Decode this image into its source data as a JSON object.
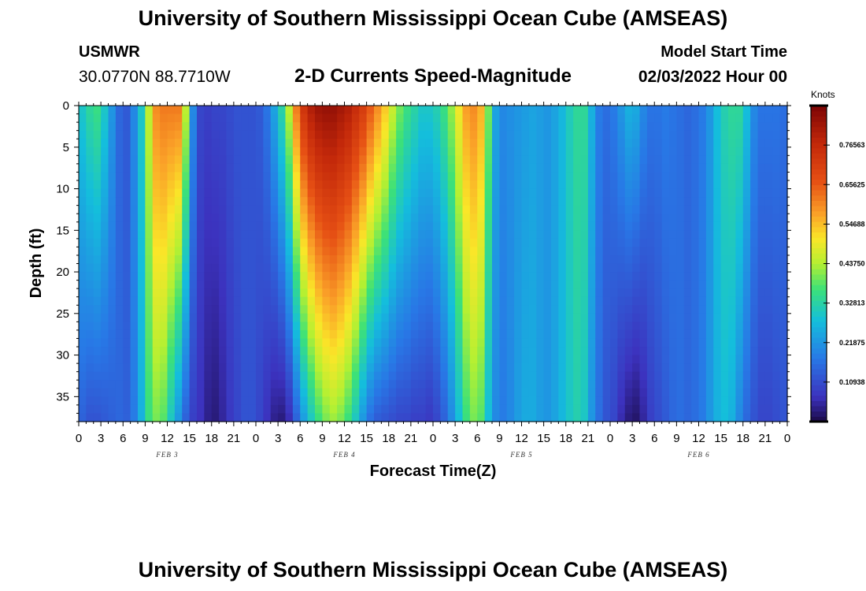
{
  "header": {
    "title": "University of Southern Mississippi Ocean Cube (AMSEAS)",
    "station": "USMWR",
    "coordinates": "30.0770N  88.7710W",
    "chart_subtitle": "2-D Currents Speed-Magnitude",
    "start_label": "Model Start Time",
    "start_value": "02/03/2022 Hour 00"
  },
  "footer": {
    "title": "University of Southern Mississippi Ocean Cube (AMSEAS)"
  },
  "chart_data": {
    "type": "heatmap",
    "title": "2-D Currents Speed-Magnitude",
    "xlabel": "Forecast Time(Z)",
    "ylabel": "Depth (ft)",
    "x_range_hours": [
      0,
      96
    ],
    "x_tick_labels": [
      "0",
      "3",
      "6",
      "9",
      "12",
      "15",
      "18",
      "21",
      "0",
      "3",
      "6",
      "9",
      "12",
      "15",
      "18",
      "21",
      "0",
      "3",
      "6",
      "9",
      "12",
      "15",
      "18",
      "21",
      "0",
      "3",
      "6",
      "9",
      "12",
      "15",
      "18",
      "21",
      "0"
    ],
    "date_labels": [
      {
        "label": "FEB 3",
        "hour": 12
      },
      {
        "label": "FEB 4",
        "hour": 36
      },
      {
        "label": "FEB 5",
        "hour": 60
      },
      {
        "label": "FEB 6",
        "hour": 84
      }
    ],
    "y_range_ft": [
      0,
      38
    ],
    "y_ticks": [
      0,
      5,
      10,
      15,
      20,
      25,
      30,
      35
    ],
    "y_inverted": true,
    "colorbar": {
      "title": "Knots",
      "ticks": [
        "0.76563",
        "0.65625",
        "0.54688",
        "0.43750",
        "0.32813",
        "0.21875",
        "0.10938"
      ],
      "tick_values": [
        0.76563,
        0.65625,
        0.54688,
        0.4375,
        0.32813,
        0.21875,
        0.10938
      ],
      "range": [
        0,
        0.875
      ]
    },
    "time_hours": [
      0,
      1,
      2,
      3,
      4,
      5,
      6,
      7,
      8,
      9,
      10,
      11,
      12,
      13,
      14,
      15,
      16,
      17,
      18,
      19,
      20,
      21,
      22,
      23,
      24,
      25,
      26,
      27,
      28,
      29,
      30,
      31,
      32,
      33,
      34,
      35,
      36,
      37,
      38,
      39,
      40,
      41,
      42,
      43,
      44,
      45,
      46,
      47,
      48,
      49,
      50,
      51,
      52,
      53,
      54,
      55,
      56,
      57,
      58,
      59,
      60,
      61,
      62,
      63,
      64,
      65,
      66,
      67,
      68,
      69,
      70,
      71,
      72,
      73,
      74,
      75,
      76,
      77,
      78,
      79,
      80,
      81,
      82,
      83,
      84,
      85,
      86,
      87,
      88,
      89,
      90,
      91,
      92,
      93,
      94,
      95,
      96
    ],
    "surface_speed_knots": [
      0.3,
      0.34,
      0.36,
      0.3,
      0.22,
      0.15,
      0.13,
      0.2,
      0.3,
      0.45,
      0.6,
      0.62,
      0.62,
      0.62,
      0.45,
      0.2,
      0.1,
      0.09,
      0.1,
      0.1,
      0.11,
      0.12,
      0.12,
      0.12,
      0.13,
      0.17,
      0.24,
      0.33,
      0.45,
      0.62,
      0.74,
      0.8,
      0.83,
      0.84,
      0.84,
      0.82,
      0.8,
      0.76,
      0.72,
      0.66,
      0.6,
      0.54,
      0.46,
      0.4,
      0.36,
      0.33,
      0.3,
      0.3,
      0.32,
      0.36,
      0.42,
      0.5,
      0.58,
      0.6,
      0.56,
      0.4,
      0.24,
      0.2,
      0.21,
      0.22,
      0.23,
      0.24,
      0.23,
      0.22,
      0.24,
      0.27,
      0.31,
      0.34,
      0.34,
      0.26,
      0.18,
      0.16,
      0.18,
      0.22,
      0.26,
      0.25,
      0.2,
      0.17,
      0.17,
      0.18,
      0.17,
      0.16,
      0.15,
      0.16,
      0.18,
      0.22,
      0.28,
      0.32,
      0.34,
      0.34,
      0.28,
      0.2,
      0.17,
      0.17,
      0.17,
      0.16,
      0.2
    ],
    "bottom_speed_knots": [
      0.14,
      0.12,
      0.12,
      0.13,
      0.14,
      0.15,
      0.14,
      0.18,
      0.26,
      0.36,
      0.4,
      0.38,
      0.3,
      0.22,
      0.14,
      0.09,
      0.07,
      0.04,
      0.03,
      0.05,
      0.08,
      0.1,
      0.12,
      0.12,
      0.1,
      0.07,
      0.04,
      0.03,
      0.06,
      0.14,
      0.23,
      0.3,
      0.36,
      0.4,
      0.42,
      0.4,
      0.36,
      0.3,
      0.22,
      0.16,
      0.13,
      0.12,
      0.11,
      0.1,
      0.1,
      0.09,
      0.09,
      0.08,
      0.1,
      0.14,
      0.2,
      0.28,
      0.36,
      0.4,
      0.38,
      0.28,
      0.2,
      0.18,
      0.2,
      0.23,
      0.25,
      0.25,
      0.23,
      0.22,
      0.24,
      0.27,
      0.3,
      0.32,
      0.3,
      0.22,
      0.16,
      0.12,
      0.1,
      0.06,
      0.03,
      0.02,
      0.05,
      0.09,
      0.11,
      0.13,
      0.15,
      0.16,
      0.15,
      0.16,
      0.18,
      0.22,
      0.26,
      0.28,
      0.26,
      0.2,
      0.15,
      0.12,
      0.1,
      0.1,
      0.11,
      0.12,
      0.16
    ]
  }
}
